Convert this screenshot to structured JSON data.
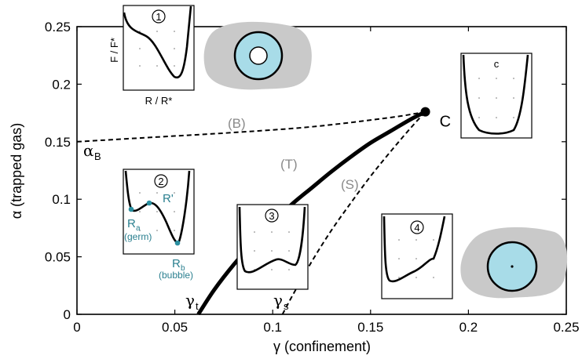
{
  "chart_data": {
    "type": "line",
    "title": "",
    "xlabel": "γ (confinement)",
    "ylabel": "α (trapped gas)",
    "xlim": [
      0,
      0.25
    ],
    "ylim": [
      0,
      0.25
    ],
    "xticks": [
      0,
      0.05,
      0.1,
      0.15,
      0.2,
      0.25
    ],
    "yticks": [
      0,
      0.05,
      0.1,
      0.15,
      0.2,
      0.25
    ],
    "xtick_labels": [
      "0",
      "0.05",
      "0.1",
      "0.15",
      "0.2",
      "0.25"
    ],
    "ytick_labels": [
      "0",
      "0.05",
      "0.1",
      "0.15",
      "0.2",
      "0.25"
    ],
    "grid": false,
    "series": [
      {
        "name": "(T)",
        "style": "solid-thick",
        "x": [
          0.062,
          0.07,
          0.08,
          0.09,
          0.1,
          0.11,
          0.12,
          0.13,
          0.14,
          0.15,
          0.16,
          0.17,
          0.178
        ],
        "y": [
          0,
          0.021,
          0.043,
          0.062,
          0.08,
          0.096,
          0.11,
          0.124,
          0.137,
          0.149,
          0.159,
          0.169,
          0.176
        ]
      },
      {
        "name": "(S)",
        "style": "dashed",
        "x": [
          0.105,
          0.11,
          0.12,
          0.13,
          0.14,
          0.15,
          0.16,
          0.17,
          0.178
        ],
        "y": [
          0,
          0.016,
          0.046,
          0.073,
          0.097,
          0.12,
          0.141,
          0.161,
          0.176
        ]
      },
      {
        "name": "(B)",
        "style": "dashed",
        "x": [
          0,
          0.04,
          0.08,
          0.12,
          0.16,
          0.178
        ],
        "y": [
          0.15,
          0.154,
          0.158,
          0.163,
          0.171,
          0.176
        ]
      }
    ],
    "critical_point": {
      "label": "C",
      "x": 0.178,
      "y": 0.176
    },
    "annotations": {
      "alpha_b": "α",
      "alpha_b_sub": "B",
      "gamma_t": "γ",
      "gamma_t_sub": "t",
      "gamma_s": "γ",
      "gamma_s_sub": "s",
      "label_B": "(B)",
      "label_T": "(T)",
      "label_S": "(S)",
      "label_C": "C"
    },
    "insets": [
      {
        "id": "1",
        "label": "1",
        "ylabel": "F / F*",
        "xlabel": "R / R*"
      },
      {
        "id": "2",
        "label": "2",
        "point_labels": [
          "R",
          "a",
          "(germ)",
          "R'",
          "R",
          "b",
          "(bubble)"
        ]
      },
      {
        "id": "3",
        "label": "3"
      },
      {
        "id": "4",
        "label": "4"
      },
      {
        "id": "c",
        "label": "c"
      }
    ],
    "colors": {
      "curves": "#000000",
      "guide_labels": "#8a8a8a",
      "bubble_fill": "#a8dce8",
      "medium": "#c9c9c9",
      "marker": "#2a8fa0"
    }
  }
}
